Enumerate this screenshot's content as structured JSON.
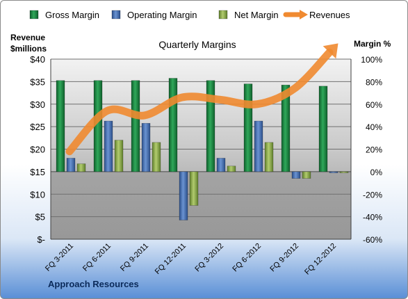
{
  "chart_data": {
    "type": "bar",
    "title": "Quarterly Margins",
    "footer": "Approach Resources",
    "categories": [
      "FQ 3-2011",
      "FQ 6-2011",
      "FQ 9-2011",
      "FQ 12-2011",
      "FQ 3-2012",
      "FQ 6-2012",
      "FQ 9-2012",
      "FQ 12-2012"
    ],
    "left_axis": {
      "label_line1": "Revenue",
      "label_line2": "$millions",
      "min": 0,
      "max": 40,
      "ticks": [
        "$-",
        "$5",
        "$10",
        "$15",
        "$20",
        "$25",
        "$30",
        "$35",
        "$40"
      ]
    },
    "right_axis": {
      "label": "Margin %",
      "min": -60,
      "max": 100,
      "ticks": [
        "-60%",
        "-40%",
        "-20%",
        "0%",
        "20%",
        "40%",
        "60%",
        "80%",
        "100%"
      ]
    },
    "series": [
      {
        "name": "Gross Margin",
        "axis": "right",
        "color": "#1e8a45",
        "values": [
          81,
          81,
          81,
          83,
          81,
          78,
          77,
          76
        ]
      },
      {
        "name": "Operating Margin",
        "axis": "right",
        "color": "#4a74b8",
        "values": [
          12,
          45,
          43,
          -43,
          12,
          45,
          -6,
          -1
        ]
      },
      {
        "name": "Net Margin",
        "axis": "right",
        "color": "#8fb050",
        "values": [
          7,
          28,
          26,
          -30,
          5,
          26,
          -6,
          -1
        ]
      },
      {
        "name": "Revenues",
        "axis": "left",
        "type": "line",
        "color": "#f08a30",
        "values": [
          19.5,
          28.5,
          27.5,
          31.5,
          31,
          30,
          33.5,
          41.5
        ]
      }
    ],
    "legend_position": "top",
    "grid": true
  }
}
